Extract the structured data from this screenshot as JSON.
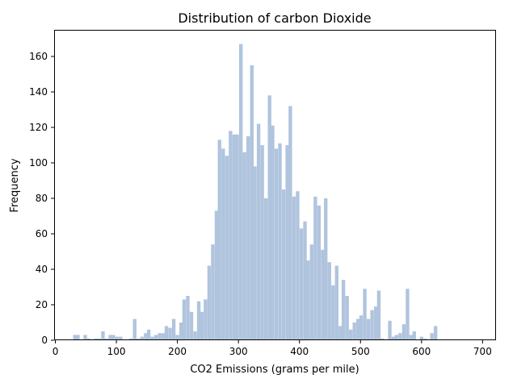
{
  "chart_data": {
    "type": "bar",
    "title": "Distribution of carbon Dioxide",
    "xlabel": "CO2 Emissions (grams per mile)",
    "ylabel": "Frequency",
    "xlim": [
      -2,
      722
    ],
    "ylim": [
      0,
      175
    ],
    "x_ticks": [
      0,
      100,
      200,
      300,
      400,
      500,
      600,
      700
    ],
    "y_ticks": [
      0,
      20,
      40,
      60,
      80,
      100,
      120,
      140,
      160
    ],
    "bin_width": 5.8,
    "bar_color": "#b0c4de",
    "grid": false,
    "bins": [
      {
        "x": 32,
        "count": 3
      },
      {
        "x": 37,
        "count": 3
      },
      {
        "x": 43,
        "count": 0
      },
      {
        "x": 49,
        "count": 3
      },
      {
        "x": 55,
        "count": 1
      },
      {
        "x": 61,
        "count": 0
      },
      {
        "x": 66,
        "count": 1
      },
      {
        "x": 72,
        "count": 1
      },
      {
        "x": 78,
        "count": 5
      },
      {
        "x": 84,
        "count": 1
      },
      {
        "x": 90,
        "count": 3
      },
      {
        "x": 95,
        "count": 3
      },
      {
        "x": 101,
        "count": 2
      },
      {
        "x": 107,
        "count": 2
      },
      {
        "x": 113,
        "count": 0
      },
      {
        "x": 119,
        "count": 0
      },
      {
        "x": 124,
        "count": 1
      },
      {
        "x": 130,
        "count": 12
      },
      {
        "x": 136,
        "count": 1
      },
      {
        "x": 142,
        "count": 2
      },
      {
        "x": 148,
        "count": 4
      },
      {
        "x": 153,
        "count": 6
      },
      {
        "x": 159,
        "count": 2
      },
      {
        "x": 165,
        "count": 3
      },
      {
        "x": 171,
        "count": 4
      },
      {
        "x": 177,
        "count": 4
      },
      {
        "x": 182,
        "count": 8
      },
      {
        "x": 188,
        "count": 7
      },
      {
        "x": 194,
        "count": 12
      },
      {
        "x": 200,
        "count": 3
      },
      {
        "x": 206,
        "count": 10
      },
      {
        "x": 211,
        "count": 23
      },
      {
        "x": 217,
        "count": 25
      },
      {
        "x": 223,
        "count": 16
      },
      {
        "x": 229,
        "count": 5
      },
      {
        "x": 235,
        "count": 22
      },
      {
        "x": 240,
        "count": 16
      },
      {
        "x": 246,
        "count": 23
      },
      {
        "x": 252,
        "count": 42
      },
      {
        "x": 258,
        "count": 54
      },
      {
        "x": 264,
        "count": 73
      },
      {
        "x": 269,
        "count": 113
      },
      {
        "x": 275,
        "count": 108
      },
      {
        "x": 281,
        "count": 104
      },
      {
        "x": 287,
        "count": 118
      },
      {
        "x": 293,
        "count": 116
      },
      {
        "x": 298,
        "count": 116
      },
      {
        "x": 304,
        "count": 167
      },
      {
        "x": 310,
        "count": 106
      },
      {
        "x": 316,
        "count": 115
      },
      {
        "x": 322,
        "count": 155
      },
      {
        "x": 327,
        "count": 98
      },
      {
        "x": 333,
        "count": 122
      },
      {
        "x": 339,
        "count": 110
      },
      {
        "x": 345,
        "count": 80
      },
      {
        "x": 351,
        "count": 138
      },
      {
        "x": 356,
        "count": 121
      },
      {
        "x": 362,
        "count": 108
      },
      {
        "x": 368,
        "count": 111
      },
      {
        "x": 374,
        "count": 85
      },
      {
        "x": 380,
        "count": 110
      },
      {
        "x": 385,
        "count": 132
      },
      {
        "x": 391,
        "count": 81
      },
      {
        "x": 397,
        "count": 84
      },
      {
        "x": 403,
        "count": 63
      },
      {
        "x": 409,
        "count": 67
      },
      {
        "x": 414,
        "count": 45
      },
      {
        "x": 420,
        "count": 54
      },
      {
        "x": 426,
        "count": 81
      },
      {
        "x": 432,
        "count": 76
      },
      {
        "x": 438,
        "count": 51
      },
      {
        "x": 443,
        "count": 80
      },
      {
        "x": 449,
        "count": 44
      },
      {
        "x": 455,
        "count": 31
      },
      {
        "x": 461,
        "count": 42
      },
      {
        "x": 467,
        "count": 8
      },
      {
        "x": 472,
        "count": 34
      },
      {
        "x": 478,
        "count": 25
      },
      {
        "x": 484,
        "count": 6
      },
      {
        "x": 490,
        "count": 10
      },
      {
        "x": 496,
        "count": 12
      },
      {
        "x": 501,
        "count": 14
      },
      {
        "x": 507,
        "count": 29
      },
      {
        "x": 513,
        "count": 12
      },
      {
        "x": 519,
        "count": 17
      },
      {
        "x": 525,
        "count": 19
      },
      {
        "x": 530,
        "count": 28
      },
      {
        "x": 536,
        "count": 1
      },
      {
        "x": 542,
        "count": 0
      },
      {
        "x": 548,
        "count": 11
      },
      {
        "x": 554,
        "count": 2
      },
      {
        "x": 559,
        "count": 3
      },
      {
        "x": 565,
        "count": 4
      },
      {
        "x": 571,
        "count": 9
      },
      {
        "x": 577,
        "count": 29
      },
      {
        "x": 583,
        "count": 3
      },
      {
        "x": 588,
        "count": 5
      },
      {
        "x": 594,
        "count": 0
      },
      {
        "x": 600,
        "count": 2
      },
      {
        "x": 606,
        "count": 1
      },
      {
        "x": 612,
        "count": 0
      },
      {
        "x": 617,
        "count": 4
      },
      {
        "x": 623,
        "count": 8
      }
    ]
  }
}
